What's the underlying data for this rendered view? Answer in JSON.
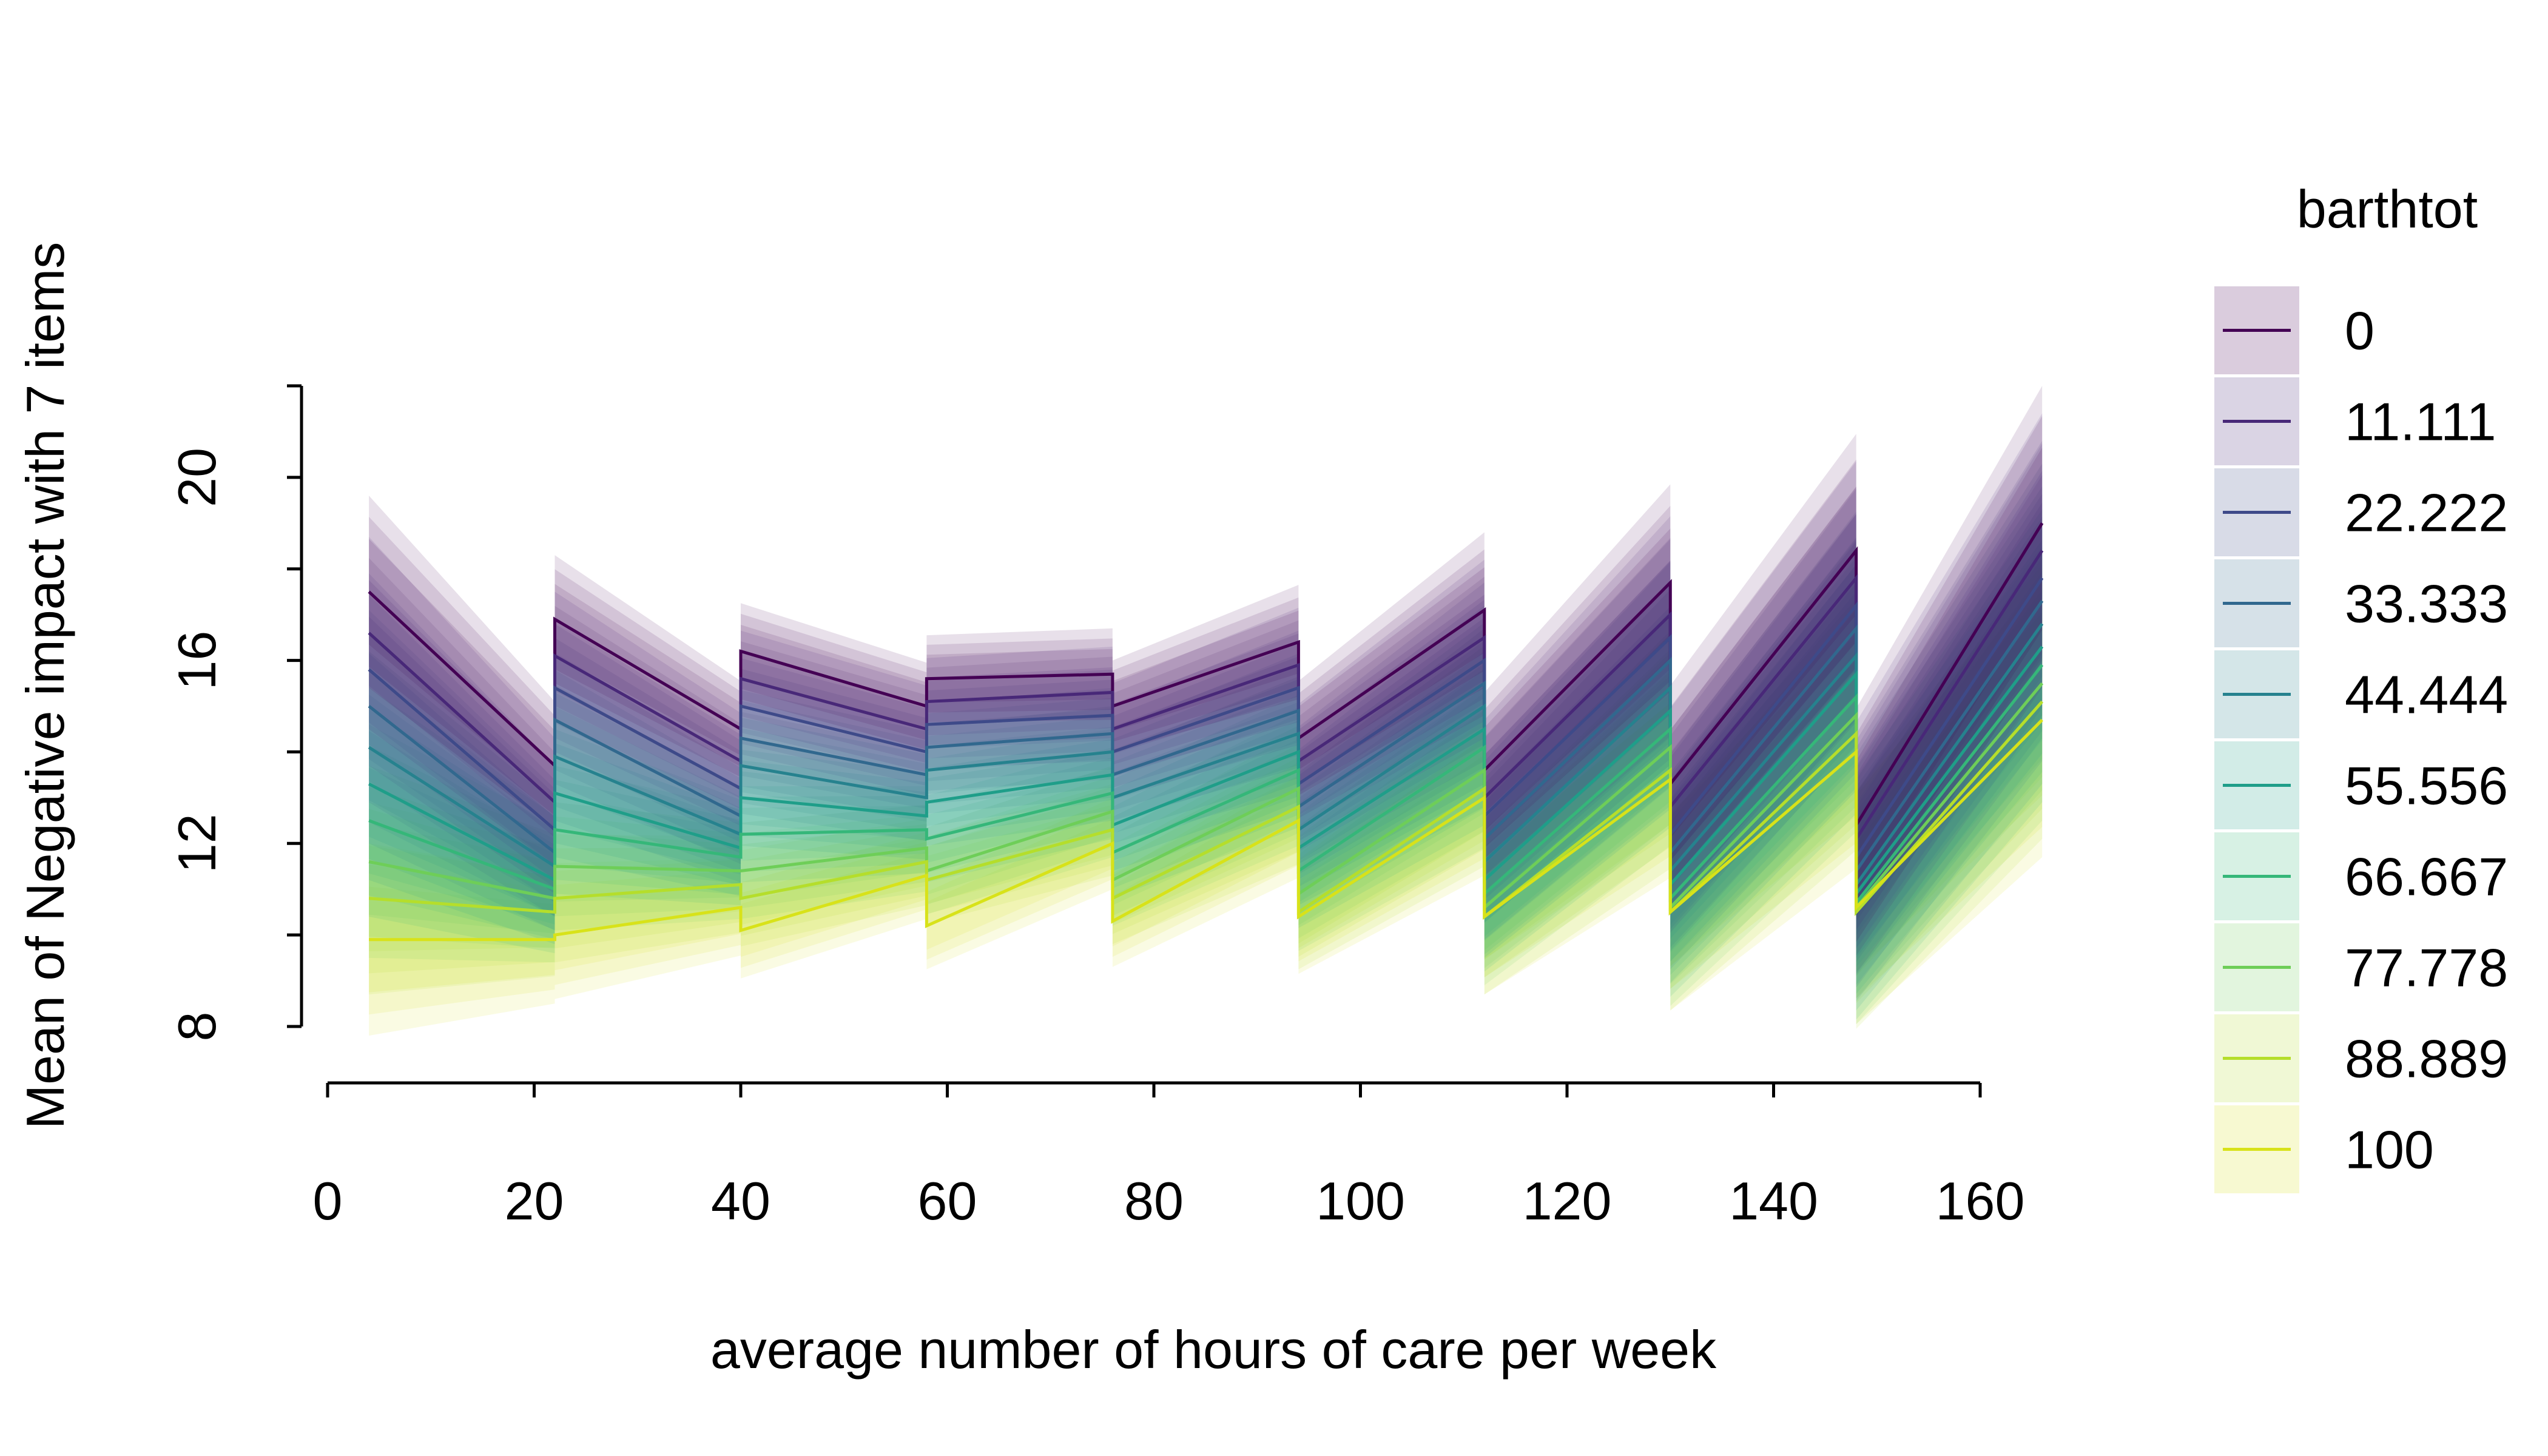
{
  "chart_data": {
    "type": "line",
    "title": "",
    "xlabel": "average number of hours of care per week",
    "ylabel": "Mean of Negative impact with 7 items",
    "xlim": [
      0,
      160
    ],
    "ylim": [
      8,
      22
    ],
    "x_ticks": [
      "0",
      "20",
      "40",
      "60",
      "80",
      "100",
      "120",
      "140",
      "160"
    ],
    "y_ticks": [
      "8",
      "12",
      "16",
      "20"
    ],
    "y_minor_ticks": [
      10,
      14,
      18,
      22
    ],
    "grid": false,
    "legend": {
      "title": "barthtot",
      "position": "right"
    },
    "segments": [
      {
        "x_start": 4,
        "x_end": 22,
        "band_at_start": 2.1,
        "band_at_end": 1.4
      },
      {
        "x_start": 22,
        "x_end": 40,
        "band_at_start": 1.4,
        "band_at_end": 1.05
      },
      {
        "x_start": 40,
        "x_end": 58,
        "band_at_start": 1.05,
        "band_at_end": 0.95
      },
      {
        "x_start": 58,
        "x_end": 76,
        "band_at_start": 0.95,
        "band_at_end": 1.0
      },
      {
        "x_start": 76,
        "x_end": 94,
        "band_at_start": 1.0,
        "band_at_end": 1.25
      },
      {
        "x_start": 94,
        "x_end": 112,
        "band_at_start": 1.25,
        "band_at_end": 1.7
      },
      {
        "x_start": 112,
        "x_end": 130,
        "band_at_start": 1.7,
        "band_at_end": 2.15
      },
      {
        "x_start": 130,
        "x_end": 148,
        "band_at_start": 2.15,
        "band_at_end": 2.55
      },
      {
        "x_start": 148,
        "x_end": 166,
        "band_at_start": 2.55,
        "band_at_end": 3.0
      }
    ],
    "series": [
      {
        "name": "0",
        "color": "#440154",
        "values": [
          [
            17.5,
            13.7
          ],
          [
            16.9,
            14.5
          ],
          [
            16.2,
            15.0
          ],
          [
            15.6,
            15.7
          ],
          [
            15.0,
            16.4
          ],
          [
            14.3,
            17.1
          ],
          [
            13.6,
            17.7
          ],
          [
            13.3,
            18.4
          ],
          [
            12.4,
            19.0
          ]
        ]
      },
      {
        "name": "11.111",
        "color": "#482878",
        "values": [
          [
            16.6,
            12.9
          ],
          [
            16.1,
            13.8
          ],
          [
            15.6,
            14.5
          ],
          [
            15.1,
            15.3
          ],
          [
            14.5,
            15.9
          ],
          [
            13.8,
            16.5
          ],
          [
            13.0,
            17.0
          ],
          [
            12.8,
            17.8
          ],
          [
            12.1,
            18.4
          ]
        ]
      },
      {
        "name": "22.222",
        "color": "#3e4a89",
        "values": [
          [
            15.8,
            12.3
          ],
          [
            15.4,
            13.2
          ],
          [
            15.0,
            14.0
          ],
          [
            14.6,
            14.8
          ],
          [
            14.0,
            15.4
          ],
          [
            13.3,
            16.0
          ],
          [
            12.6,
            16.5
          ],
          [
            12.2,
            17.2
          ],
          [
            11.7,
            17.8
          ]
        ]
      },
      {
        "name": "33.333",
        "color": "#31688e",
        "values": [
          [
            15.0,
            11.8
          ],
          [
            14.7,
            12.6
          ],
          [
            14.3,
            13.5
          ],
          [
            14.1,
            14.4
          ],
          [
            13.5,
            14.9
          ],
          [
            12.8,
            15.5
          ],
          [
            12.1,
            16.0
          ],
          [
            11.8,
            16.7
          ],
          [
            11.4,
            17.3
          ]
        ]
      },
      {
        "name": "44.444",
        "color": "#26828e",
        "values": [
          [
            14.1,
            11.5
          ],
          [
            13.9,
            12.2
          ],
          [
            13.7,
            13.0
          ],
          [
            13.6,
            14.0
          ],
          [
            13.0,
            14.4
          ],
          [
            12.3,
            15.0
          ],
          [
            11.6,
            15.4
          ],
          [
            11.4,
            16.1
          ],
          [
            11.1,
            16.8
          ]
        ]
      },
      {
        "name": "55.556",
        "color": "#1f9e89",
        "values": [
          [
            13.3,
            11.2
          ],
          [
            13.1,
            11.9
          ],
          [
            13.0,
            12.6
          ],
          [
            12.9,
            13.5
          ],
          [
            12.4,
            14.0
          ],
          [
            11.9,
            14.5
          ],
          [
            11.2,
            14.9
          ],
          [
            11.1,
            15.7
          ],
          [
            10.9,
            16.3
          ]
        ]
      },
      {
        "name": "66.667",
        "color": "#35b779",
        "values": [
          [
            12.5,
            11.0
          ],
          [
            12.3,
            11.7
          ],
          [
            12.2,
            12.3
          ],
          [
            12.1,
            13.1
          ],
          [
            11.8,
            13.6
          ],
          [
            11.4,
            14.1
          ],
          [
            10.9,
            14.5
          ],
          [
            10.8,
            15.2
          ],
          [
            10.7,
            15.9
          ]
        ]
      },
      {
        "name": "77.778",
        "color": "#6ece58",
        "values": [
          [
            11.6,
            10.8
          ],
          [
            11.5,
            11.4
          ],
          [
            11.4,
            11.9
          ],
          [
            11.4,
            12.7
          ],
          [
            11.2,
            13.2
          ],
          [
            10.9,
            13.6
          ],
          [
            10.6,
            14.1
          ],
          [
            10.6,
            14.8
          ],
          [
            10.6,
            15.5
          ]
        ]
      },
      {
        "name": "88.889",
        "color": "#b5de2b",
        "values": [
          [
            10.8,
            10.5
          ],
          [
            10.8,
            11.1
          ],
          [
            10.8,
            11.6
          ],
          [
            11.2,
            12.3
          ],
          [
            10.8,
            12.8
          ],
          [
            10.5,
            13.2
          ],
          [
            10.4,
            13.6
          ],
          [
            10.5,
            14.4
          ],
          [
            10.5,
            15.1
          ]
        ]
      },
      {
        "name": "100",
        "color": "#d8e219",
        "values": [
          [
            9.9,
            9.9
          ],
          [
            10.0,
            10.6
          ],
          [
            10.1,
            11.3
          ],
          [
            10.2,
            12.0
          ],
          [
            10.3,
            12.5
          ],
          [
            10.4,
            13.0
          ],
          [
            10.4,
            13.4
          ],
          [
            10.5,
            14.0
          ],
          [
            10.6,
            14.7
          ]
        ]
      }
    ]
  }
}
